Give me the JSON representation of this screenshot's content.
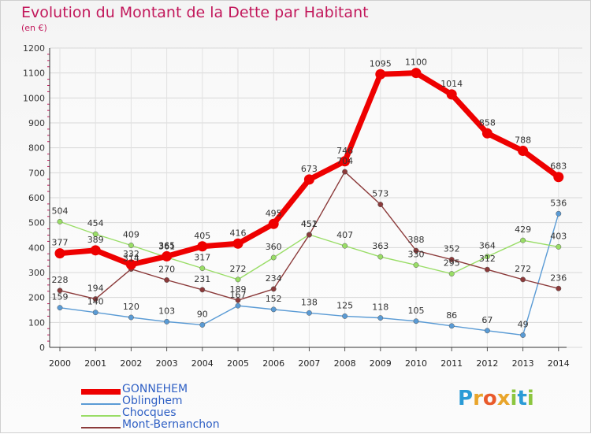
{
  "title": "Evolution du Montant de la Dette par Habitant",
  "unit": "(en €)",
  "logo": {
    "text": "Proxiti",
    "letters": [
      "P",
      "r",
      "o",
      "x",
      "i",
      "t",
      "i"
    ],
    "colors": [
      "#2a9bd6",
      "#e9a52b",
      "#e95a2b",
      "#e9a52b",
      "#8cc63f",
      "#2a9bd6",
      "#8cc63f"
    ]
  },
  "chart_data": {
    "type": "line",
    "title": "Evolution du Montant de la Dette par Habitant",
    "ylabel": "(en €)",
    "xlabel": "",
    "ylim": [
      0,
      1200
    ],
    "yticks": [
      "0",
      "100",
      "200",
      "300",
      "400",
      "500",
      "600",
      "700",
      "800",
      "900",
      "1000",
      "1100",
      "1200"
    ],
    "categories": [
      "2000",
      "2001",
      "2002",
      "2003",
      "2004",
      "2005",
      "2006",
      "2007",
      "2008",
      "2009",
      "2010",
      "2011",
      "2012",
      "2013",
      "2014"
    ],
    "legend_position": "bottom-left",
    "series": [
      {
        "name": "GONNEHEM",
        "color": "#ee0000",
        "values": [
          377,
          389,
          332,
          365,
          405,
          416,
          495,
          673,
          746,
          1095,
          1100,
          1014,
          858,
          788,
          683
        ]
      },
      {
        "name": "Oblinghem",
        "color": "#5a9bd5",
        "values": [
          159,
          140,
          120,
          103,
          90,
          167,
          152,
          138,
          125,
          118,
          105,
          86,
          67,
          49,
          536
        ]
      },
      {
        "name": "Chocques",
        "color": "#99dd66",
        "values": [
          504,
          454,
          409,
          361,
          317,
          272,
          360,
          452,
          407,
          363,
          330,
          295,
          364,
          429,
          403
        ]
      },
      {
        "name": "Mont-Bernanchon",
        "color": "#8b3a3a",
        "values": [
          228,
          194,
          314,
          270,
          231,
          189,
          234,
          451,
          704,
          573,
          388,
          352,
          312,
          272,
          236
        ]
      }
    ],
    "data_labels": [
      [
        "377",
        "389",
        "332",
        "365",
        "405",
        "416",
        "495",
        "673",
        "746",
        "1095",
        "1100",
        "1014",
        "858",
        "788",
        "683"
      ],
      [
        "159",
        "140",
        "120",
        "103",
        "90",
        "167",
        "152",
        "138",
        "125",
        "118",
        "105",
        "86",
        "67",
        "49",
        "536"
      ],
      [
        "504",
        "454",
        "409",
        "361",
        "317",
        "272",
        "360",
        "452",
        "407",
        "363",
        "330",
        "295",
        "364",
        "429",
        "403"
      ],
      [
        "228",
        "194",
        "314",
        "270",
        "231",
        "189",
        "234",
        "451",
        "704",
        "573",
        "388",
        "352",
        "312",
        "272",
        "236"
      ]
    ]
  }
}
